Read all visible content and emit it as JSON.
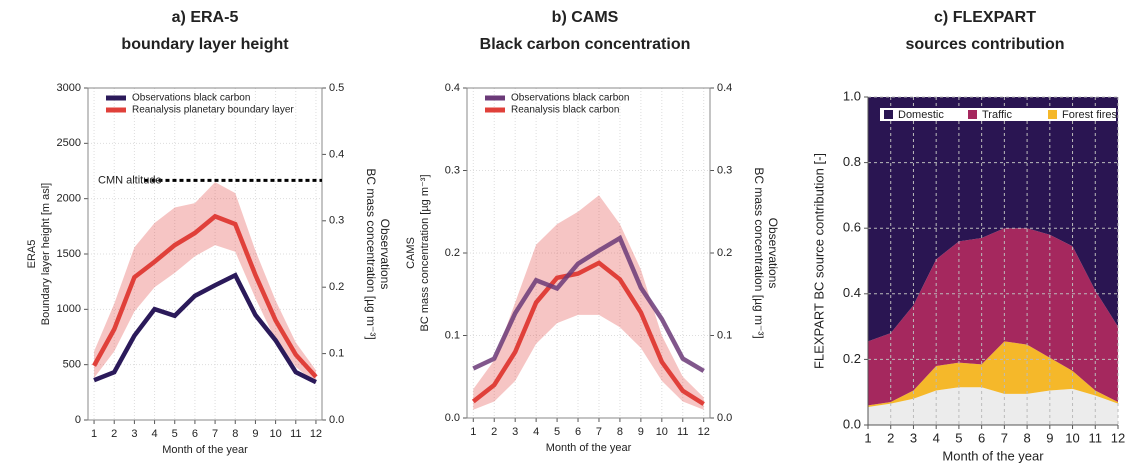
{
  "chart_data": [
    {
      "type": "line",
      "title": "a) ERA-5",
      "subtitle": "boundary layer height",
      "xlabel": "Month of the year",
      "ylabel": [
        "ERA5",
        "Boundary layer height  [m asl]"
      ],
      "y2label": [
        "Observations",
        "BC mass concentration [µg m⁻³]"
      ],
      "x": [
        1,
        2,
        3,
        4,
        5,
        6,
        7,
        8,
        9,
        10,
        11,
        12
      ],
      "xlim": [
        0.7,
        12.3
      ],
      "xticks": [
        1,
        2,
        3,
        4,
        5,
        6,
        7,
        8,
        9,
        10,
        11,
        12
      ],
      "ylim": [
        0,
        3000
      ],
      "yticks": [
        0,
        500,
        1000,
        1500,
        2000,
        2500,
        3000
      ],
      "y2lim": [
        0,
        0.5
      ],
      "y2ticks": [
        {
          "value": 0,
          "label": "0.0"
        },
        0.1,
        0.2,
        0.3,
        0.4,
        0.5
      ],
      "grid": true,
      "reference_line": {
        "label": "CMN altitude",
        "value": 2165
      },
      "series": [
        {
          "name": "Observations black carbon",
          "color": "#2b1a5a",
          "axis": "y2",
          "values": [
            0.06,
            0.072,
            0.127,
            0.167,
            0.157,
            0.187,
            0.203,
            0.218,
            0.158,
            0.12,
            0.072,
            0.057
          ]
        },
        {
          "name": "Reanalysis planetary boundary layer",
          "color": "#e0403a",
          "values": [
            490,
            820,
            1290,
            1430,
            1580,
            1690,
            1840,
            1770,
            1310,
            900,
            590,
            390
          ],
          "lower": [
            380,
            620,
            980,
            1200,
            1330,
            1480,
            1580,
            1520,
            1100,
            720,
            480,
            330
          ],
          "upper": [
            620,
            1050,
            1560,
            1780,
            1920,
            1960,
            2150,
            2050,
            1530,
            1080,
            700,
            450
          ]
        }
      ]
    },
    {
      "type": "line",
      "title": "b) CAMS",
      "subtitle": "Black carbon concentration",
      "xlabel": "Month of the year",
      "ylabel": [
        "CAMS",
        "BC mass concentration [µg m⁻³]"
      ],
      "y2label": [
        "Observations",
        "BC mass concentration [µg m⁻³]"
      ],
      "x": [
        1,
        2,
        3,
        4,
        5,
        6,
        7,
        8,
        9,
        10,
        11,
        12
      ],
      "xlim": [
        0.7,
        12.3
      ],
      "xticks": [
        1,
        2,
        3,
        4,
        5,
        6,
        7,
        8,
        9,
        10,
        11,
        12
      ],
      "ylim": [
        0,
        0.4
      ],
      "yticks": [
        {
          "value": 0,
          "label": "0.0"
        },
        0.1,
        0.2,
        0.3,
        0.4
      ],
      "y2lim": [
        0,
        0.4
      ],
      "y2ticks": [
        {
          "value": 0,
          "label": "0.0"
        },
        0.1,
        0.2,
        0.3,
        0.4
      ],
      "grid": true,
      "series": [
        {
          "name": "Observations black carbon",
          "color": "#6b3a78",
          "axis": "y2",
          "values": [
            0.06,
            0.072,
            0.127,
            0.167,
            0.157,
            0.187,
            0.203,
            0.218,
            0.158,
            0.12,
            0.072,
            0.057
          ]
        },
        {
          "name": "Reanalysis black carbon",
          "color": "#e0403a",
          "values": [
            0.02,
            0.04,
            0.08,
            0.14,
            0.17,
            0.175,
            0.188,
            0.168,
            0.128,
            0.068,
            0.033,
            0.017
          ],
          "lower": [
            0.01,
            0.02,
            0.045,
            0.09,
            0.115,
            0.125,
            0.125,
            0.11,
            0.085,
            0.045,
            0.02,
            0.01
          ],
          "upper": [
            0.035,
            0.07,
            0.14,
            0.21,
            0.235,
            0.25,
            0.27,
            0.235,
            0.18,
            0.1,
            0.05,
            0.025
          ]
        }
      ]
    },
    {
      "type": "stacked_area",
      "title": "c) FLEXPART",
      "subtitle": "sources contribution",
      "xlabel": "Month of the year",
      "ylabel": [
        "FLEXPART BC source contribution [-]"
      ],
      "x": [
        1,
        2,
        3,
        4,
        5,
        6,
        7,
        8,
        9,
        10,
        11,
        12
      ],
      "xlim": [
        1,
        12
      ],
      "xticks": [
        1,
        2,
        3,
        4,
        5,
        6,
        7,
        8,
        9,
        10,
        11,
        12
      ],
      "ylim": [
        0,
        1
      ],
      "yticks": [
        {
          "value": 0,
          "label": "0.0"
        },
        0.2,
        0.4,
        0.6,
        0.8,
        {
          "value": 1,
          "label": "1.0"
        }
      ],
      "grid": true,
      "series": [
        {
          "color": "#ececec",
          "values": [
            0.055,
            0.065,
            0.08,
            0.105,
            0.115,
            0.115,
            0.095,
            0.095,
            0.105,
            0.11,
            0.09,
            0.065
          ]
        },
        {
          "name": "Forest fires",
          "color": "#f5b82a",
          "values": [
            0.005,
            0.005,
            0.025,
            0.075,
            0.075,
            0.07,
            0.16,
            0.15,
            0.1,
            0.055,
            0.015,
            0.005
          ]
        },
        {
          "name": "Traffic",
          "color": "#a5285e",
          "values": [
            0.195,
            0.21,
            0.26,
            0.325,
            0.37,
            0.385,
            0.345,
            0.355,
            0.375,
            0.38,
            0.305,
            0.23
          ]
        },
        {
          "name": "Domestic",
          "color": "#2a1552",
          "values": [
            0.745,
            0.72,
            0.635,
            0.495,
            0.44,
            0.43,
            0.4,
            0.4,
            0.42,
            0.455,
            0.59,
            0.7
          ]
        }
      ]
    }
  ]
}
